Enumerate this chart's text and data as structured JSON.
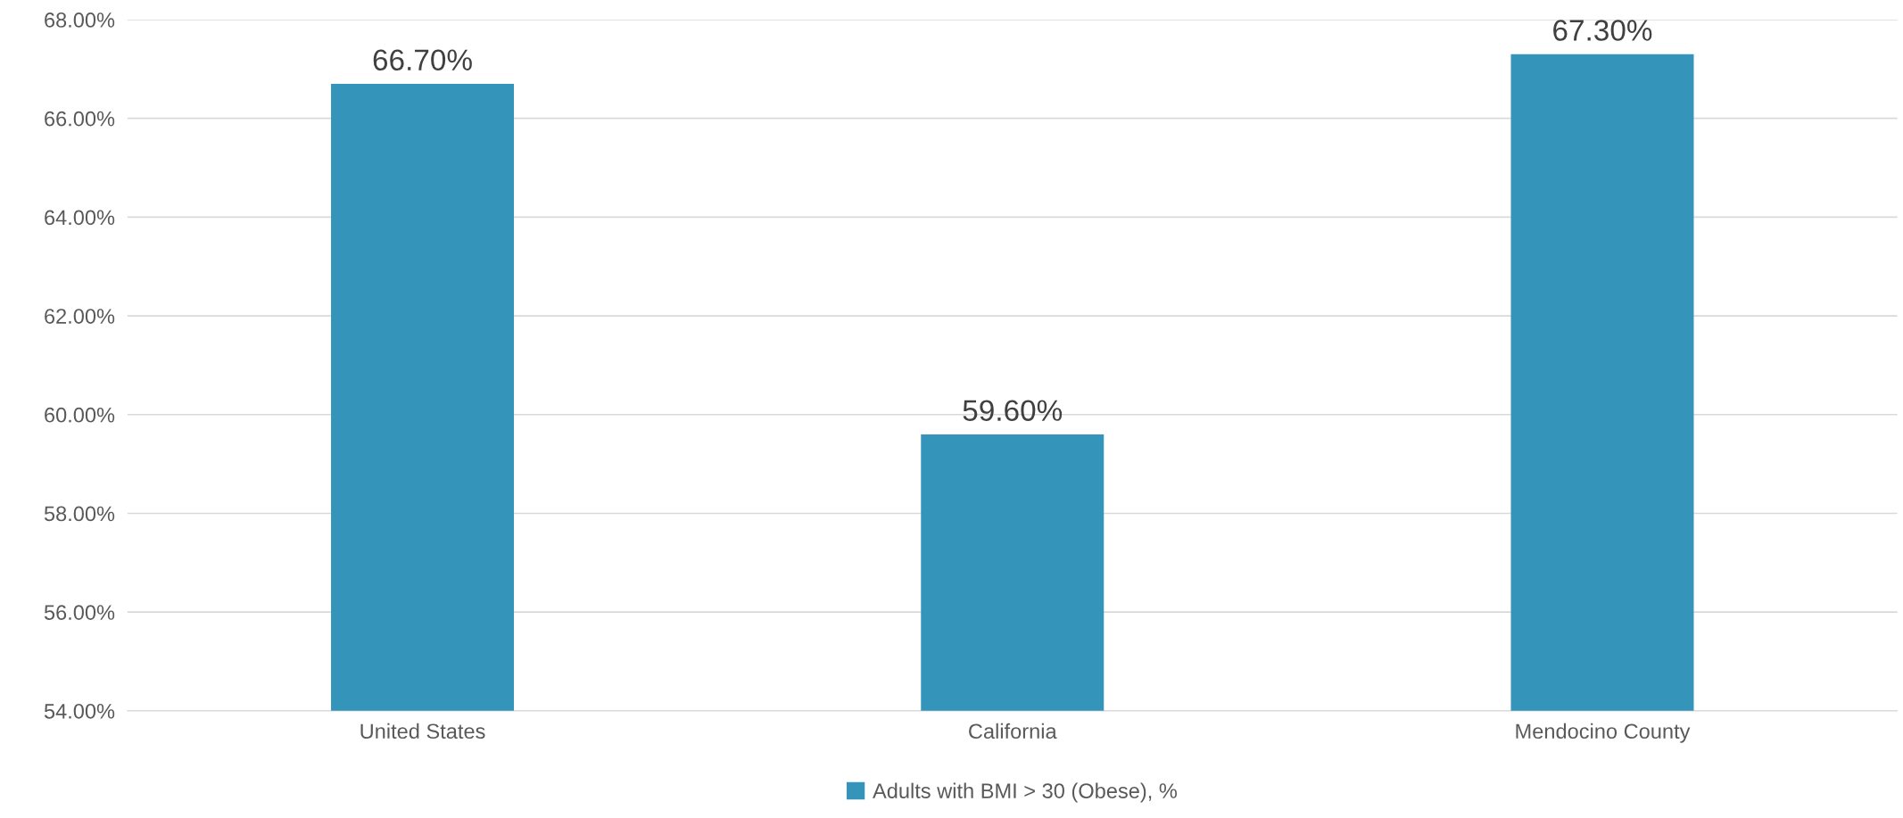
{
  "chart_data": {
    "type": "bar",
    "categories": [
      "United States",
      "California",
      "Mendocino County"
    ],
    "series": [
      {
        "name": "Adults with BMI > 30 (Obese), %",
        "color": "#3494ba",
        "values": [
          66.7,
          59.6,
          67.3
        ],
        "value_labels": [
          "66.70%",
          "59.60%",
          "67.30%"
        ]
      }
    ],
    "ylim": [
      54,
      68
    ],
    "yticks": [
      {
        "value": 54,
        "label": "54.00%"
      },
      {
        "value": 56,
        "label": "56.00%"
      },
      {
        "value": 58,
        "label": "58.00%"
      },
      {
        "value": 60,
        "label": "60.00%"
      },
      {
        "value": 62,
        "label": "62.00%"
      },
      {
        "value": 64,
        "label": "64.00%"
      },
      {
        "value": 66,
        "label": "66.00%"
      },
      {
        "value": 68,
        "label": "68.00%"
      }
    ],
    "grid": "y",
    "legend": "bottom"
  }
}
